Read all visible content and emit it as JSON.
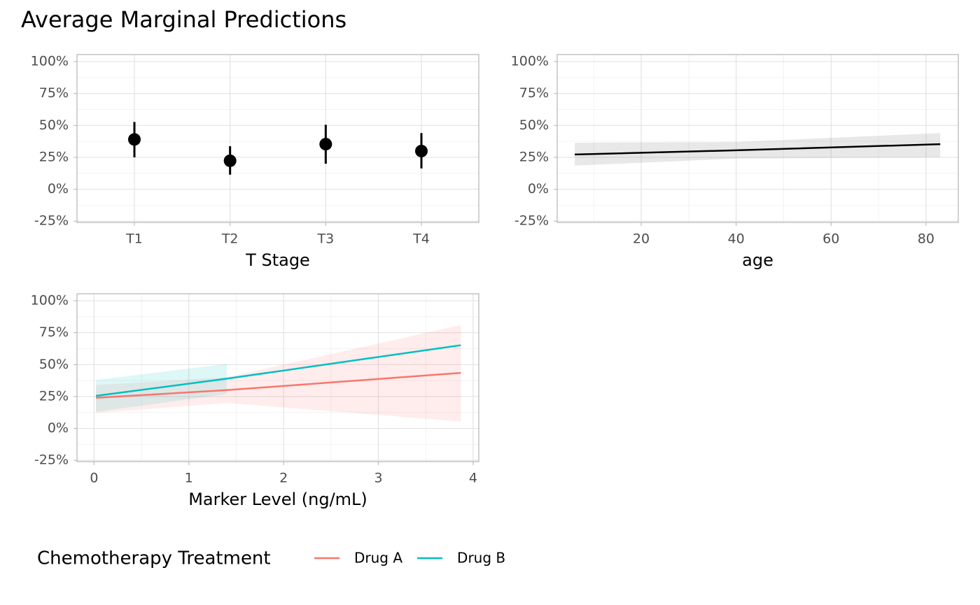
{
  "title": "Average Marginal Predictions",
  "chart_data": [
    {
      "type": "pointrange",
      "x_label": "T Stage",
      "categories": [
        "T1",
        "T2",
        "T3",
        "T4"
      ],
      "values": [
        39,
        22.3,
        35.3,
        29.9
      ],
      "lower": [
        25,
        11.4,
        20,
        16.3
      ],
      "upper": [
        52.7,
        33.7,
        50.5,
        44
      ],
      "color": "#000000",
      "ylim": [
        -26,
        105.5
      ],
      "yticks": [
        {
          "value": -25,
          "label": "-25%"
        },
        {
          "value": 0,
          "label": "0%"
        },
        {
          "value": 25,
          "label": "25%"
        },
        {
          "value": 50,
          "label": "50%"
        },
        {
          "value": 75,
          "label": "75%"
        },
        {
          "value": 100,
          "label": "100%"
        }
      ],
      "yminorticks": [
        -12.5,
        12.5,
        37.5,
        62.5,
        87.5
      ],
      "grid": true
    },
    {
      "type": "line",
      "x_label": "age",
      "x": [
        6,
        40,
        83
      ],
      "values": [
        27.2,
        30.5,
        35.3
      ],
      "lower": [
        18.5,
        24,
        25
      ],
      "upper": [
        36.4,
        37,
        44
      ],
      "color": "#000000",
      "ribbon_color": "#808080",
      "xlim": [
        2.3,
        86.8
      ],
      "xticks": [
        20,
        40,
        60,
        80
      ],
      "xminorticks": [
        10,
        30,
        50,
        70
      ],
      "ylim": [
        -26,
        105.5
      ],
      "yticks": [
        {
          "value": -25,
          "label": "-25%"
        },
        {
          "value": 0,
          "label": "0%"
        },
        {
          "value": 25,
          "label": "25%"
        },
        {
          "value": 50,
          "label": "50%"
        },
        {
          "value": 75,
          "label": "75%"
        },
        {
          "value": 100,
          "label": "100%"
        }
      ],
      "yminorticks": [
        -12.5,
        12.5,
        37.5,
        62.5,
        87.5
      ],
      "grid": true
    },
    {
      "type": "line",
      "x_label": "Marker Level (ng/mL)",
      "legend_title": "Chemotherapy Treatment",
      "series": [
        {
          "name": "Drug A",
          "color": "#F8766D",
          "x": [
            0.02,
            1.4,
            3.87
          ],
          "values": [
            24,
            30,
            43.5
          ],
          "lower": [
            12,
            20,
            5.4
          ],
          "upper": [
            34,
            40,
            81
          ]
        },
        {
          "name": "Drug B",
          "color": "#00BFC4",
          "x": [
            0.02,
            1.4,
            3.87
          ],
          "values": [
            25.5,
            39,
            65.2
          ],
          "lower": [
            13,
            27,
            null
          ],
          "upper": [
            38,
            50.5,
            null
          ]
        }
      ],
      "xlim": [
        -0.18,
        4.06
      ],
      "xticks": [
        0,
        1,
        2,
        3,
        4
      ],
      "xminorticks": [
        0.5,
        1.5,
        2.5,
        3.5
      ],
      "ylim": [
        -26,
        105.5
      ],
      "yticks": [
        {
          "value": -25,
          "label": "-25%"
        },
        {
          "value": 0,
          "label": "0%"
        },
        {
          "value": 25,
          "label": "25%"
        },
        {
          "value": 50,
          "label": "50%"
        },
        {
          "value": 75,
          "label": "75%"
        },
        {
          "value": 100,
          "label": "100%"
        }
      ],
      "yminorticks": [
        -12.5,
        12.5,
        37.5,
        62.5,
        87.5
      ],
      "grid": true
    }
  ]
}
